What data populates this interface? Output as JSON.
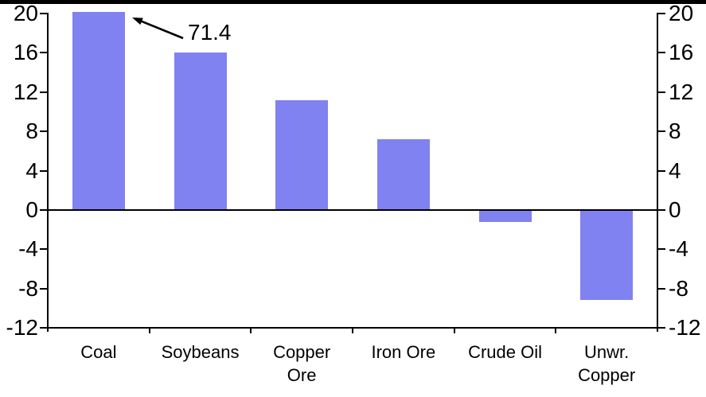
{
  "chart_data": {
    "type": "bar",
    "title": "",
    "xlabel": "",
    "ylabel": "",
    "categories": [
      "Coal",
      "Soybeans",
      "Copper Ore",
      "Iron Ore",
      "Crude Oil",
      "Unwr. Copper"
    ],
    "category_label_lines": [
      [
        "Coal"
      ],
      [
        "Soybeans"
      ],
      [
        "Copper",
        "Ore"
      ],
      [
        "Iron Ore"
      ],
      [
        "Crude Oil"
      ],
      [
        "Unwr.",
        "Copper"
      ]
    ],
    "values": [
      71.4,
      16.0,
      11.2,
      7.2,
      -1.2,
      -9.2
    ],
    "ylim": [
      -12,
      20
    ],
    "yticks_left": [
      "20",
      "16",
      "12",
      "8",
      "4",
      "0",
      "-4",
      "-8",
      "-12"
    ],
    "yticks_right": [
      "20",
      "16",
      "12",
      "8",
      "4",
      "0",
      "-4",
      "-8",
      "-12"
    ],
    "grid": "off",
    "legend": "none",
    "bar_color": "#7F82F0",
    "axis_color": "#000000",
    "annotation": {
      "text": "71.4",
      "points_to": "Coal",
      "note": "Coal bar is clipped at the top of the axis; its true value is 71.4"
    }
  }
}
